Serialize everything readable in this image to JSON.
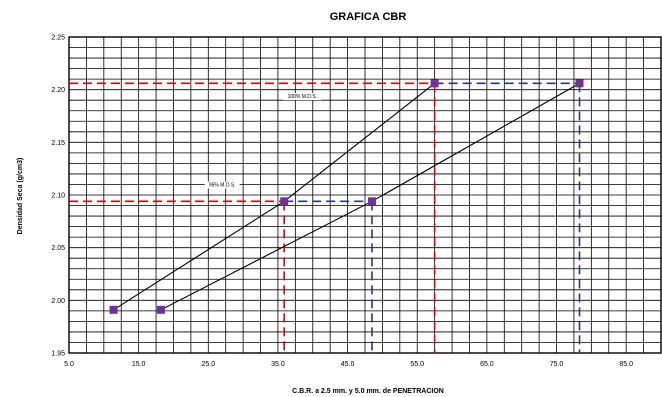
{
  "chart_data": {
    "type": "scatter",
    "title": "GRAFICA CBR",
    "xlabel": "C.B.R.  a 2.5 mm. y 5.0 mm. de PENETRACION",
    "ylabel": "Densidad Seca (g/cm3)",
    "xlim": [
      5.0,
      90.0
    ],
    "ylim": [
      1.95,
      2.25
    ],
    "x_ticks": [
      "5.0",
      "15.0",
      "25.0",
      "35.0",
      "45.0",
      "55.0",
      "65.0",
      "75.0",
      "85.0"
    ],
    "y_ticks": [
      "1.95",
      "2.00",
      "2.05",
      "2.10",
      "2.15",
      "2.20",
      "2.25"
    ],
    "grid": true,
    "series": [
      {
        "values": [
          {
            "x": 11.4,
            "y": 1.991
          },
          {
            "x": 35.9,
            "y": 2.094
          },
          {
            "x": 57.5,
            "y": 2.206
          }
        ],
        "line_color": "#000000",
        "marker_color": "#7030a0"
      },
      {
        "values": [
          {
            "x": 18.2,
            "y": 1.991
          },
          {
            "x": 48.5,
            "y": 2.094
          },
          {
            "x": 78.3,
            "y": 2.206
          }
        ],
        "line_color": "#000000",
        "marker_color": "#7030a0"
      }
    ],
    "reference_lines": [
      {
        "color": "#e00000",
        "y": 2.206,
        "x": 57.5
      },
      {
        "color": "#1f3a8a",
        "y": 2.206,
        "x_from": 57.5,
        "x": 78.3
      },
      {
        "color": "#e00000",
        "y": 2.094,
        "x": 35.9
      },
      {
        "color": "#1f3a8a",
        "y": 2.094,
        "x_from": 35.9,
        "x": 48.5
      }
    ],
    "annotations": [
      {
        "text": "100% M.D.S.",
        "x": 38.5,
        "y": 2.192
      },
      {
        "text": "95% M.D.S.",
        "x": 27.0,
        "y": 2.108
      }
    ]
  }
}
